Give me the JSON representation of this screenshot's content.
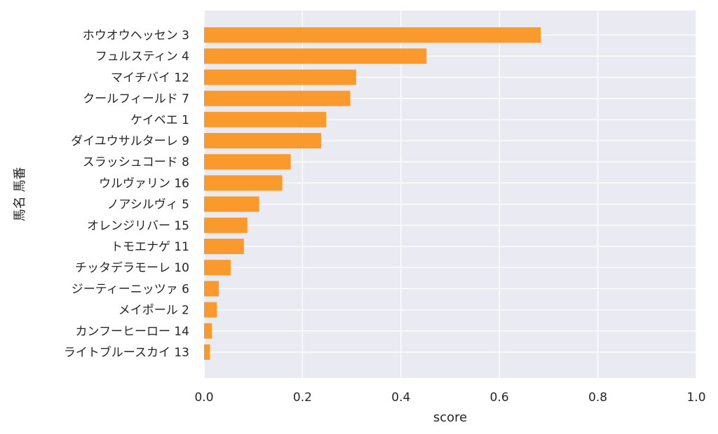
{
  "chart_data": {
    "type": "bar",
    "orientation": "horizontal",
    "categories": [
      "ホウオウヘッセン 3",
      "フュルスティン 4",
      "マイチバイ 12",
      "クールフィールド 7",
      "ケイベエ 1",
      "ダイユウサルターレ 9",
      "スラッシュコード 8",
      "ウルヴァリン 16",
      "ノアシルヴィ 5",
      "オレンジリバー 15",
      "トモエナゲ 11",
      "チッタデラモーレ 10",
      "ジーティーニッツァ 6",
      "メイポール 2",
      "カンフーヒーロー 14",
      "ライトブルースカイ 13"
    ],
    "values": [
      0.684,
      0.452,
      0.309,
      0.297,
      0.248,
      0.238,
      0.176,
      0.159,
      0.112,
      0.088,
      0.081,
      0.054,
      0.03,
      0.026,
      0.016,
      0.012
    ],
    "xlabel": "score",
    "ylabel": "馬名 馬番",
    "xlim": [
      0,
      1.0
    ],
    "xticks": [
      "0.0",
      "0.2",
      "0.4",
      "0.6",
      "0.8",
      "1.0"
    ],
    "grid": true,
    "colors": {
      "bar": "#fb9a2c",
      "plot_background": "#eaeaf2",
      "grid": "#ffffff",
      "text": "#262626"
    }
  }
}
